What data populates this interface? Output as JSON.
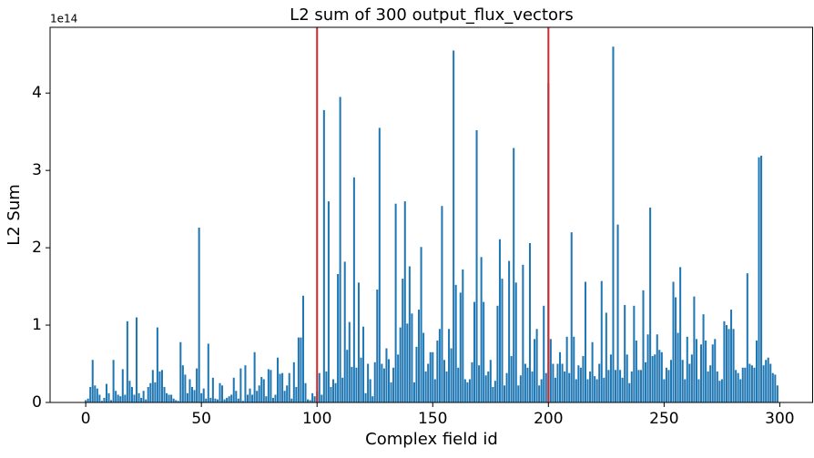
{
  "chart_data": {
    "type": "bar",
    "title": "L2 sum of 300 output_flux_vectors",
    "xlabel": "Complex field id",
    "ylabel": "L2 Sum",
    "offset_label": "1e14",
    "color": "#1f77b4",
    "bar_width": 0.8,
    "vlines": [
      100,
      200
    ],
    "vline_color": "#d62728",
    "xlim": [
      -15.4,
      314.4
    ],
    "xticks": [
      0,
      50,
      100,
      150,
      200,
      250,
      300
    ],
    "ylim": [
      0,
      4.85
    ],
    "yticks": [
      0,
      1,
      2,
      3,
      4
    ],
    "x": [
      0,
      1,
      2,
      3,
      4,
      5,
      6,
      7,
      8,
      9,
      10,
      11,
      12,
      13,
      14,
      15,
      16,
      17,
      18,
      19,
      20,
      21,
      22,
      23,
      24,
      25,
      26,
      27,
      28,
      29,
      30,
      31,
      32,
      33,
      34,
      35,
      36,
      37,
      38,
      39,
      40,
      41,
      42,
      43,
      44,
      45,
      46,
      47,
      48,
      49,
      50,
      51,
      52,
      53,
      54,
      55,
      56,
      57,
      58,
      59,
      60,
      61,
      62,
      63,
      64,
      65,
      66,
      67,
      68,
      69,
      70,
      71,
      72,
      73,
      74,
      75,
      76,
      77,
      78,
      79,
      80,
      81,
      82,
      83,
      84,
      85,
      86,
      87,
      88,
      89,
      90,
      91,
      92,
      93,
      94,
      95,
      96,
      97,
      98,
      99,
      100,
      101,
      102,
      103,
      104,
      105,
      106,
      107,
      108,
      109,
      110,
      111,
      112,
      113,
      114,
      115,
      116,
      117,
      118,
      119,
      120,
      121,
      122,
      123,
      124,
      125,
      126,
      127,
      128,
      129,
      130,
      131,
      132,
      133,
      134,
      135,
      136,
      137,
      138,
      139,
      140,
      141,
      142,
      143,
      144,
      145,
      146,
      147,
      148,
      149,
      150,
      151,
      152,
      153,
      154,
      155,
      156,
      157,
      158,
      159,
      160,
      161,
      162,
      163,
      164,
      165,
      166,
      167,
      168,
      169,
      170,
      171,
      172,
      173,
      174,
      175,
      176,
      177,
      178,
      179,
      180,
      181,
      182,
      183,
      184,
      185,
      186,
      187,
      188,
      189,
      190,
      191,
      192,
      193,
      194,
      195,
      196,
      197,
      198,
      199,
      200,
      201,
      202,
      203,
      204,
      205,
      206,
      207,
      208,
      209,
      210,
      211,
      212,
      213,
      214,
      215,
      216,
      217,
      218,
      219,
      220,
      221,
      222,
      223,
      224,
      225,
      226,
      227,
      228,
      229,
      230,
      231,
      232,
      233,
      234,
      235,
      236,
      237,
      238,
      239,
      240,
      241,
      242,
      243,
      244,
      245,
      246,
      247,
      248,
      249,
      250,
      251,
      252,
      253,
      254,
      255,
      256,
      257,
      258,
      259,
      260,
      261,
      262,
      263,
      264,
      265,
      266,
      267,
      268,
      269,
      270,
      271,
      272,
      273,
      274,
      275,
      276,
      277,
      278,
      279,
      280,
      281,
      282,
      283,
      284,
      285,
      286,
      287,
      288,
      289,
      290,
      291,
      292,
      293,
      294,
      295,
      296,
      297,
      298,
      299
    ],
    "values": [
      0.03,
      0.05,
      0.2,
      0.55,
      0.22,
      0.18,
      0.1,
      0.02,
      0.06,
      0.24,
      0.12,
      0.03,
      0.55,
      0.15,
      0.1,
      0.08,
      0.43,
      0.1,
      1.05,
      0.28,
      0.2,
      0.1,
      1.1,
      0.12,
      0.06,
      0.15,
      0.04,
      0.2,
      0.25,
      0.42,
      0.26,
      0.97,
      0.4,
      0.42,
      0.2,
      0.12,
      0.1,
      0.1,
      0.05,
      0.03,
      0.02,
      0.78,
      0.48,
      0.36,
      0.12,
      0.3,
      0.2,
      0.16,
      0.44,
      2.26,
      0.12,
      0.18,
      0.05,
      0.76,
      0.06,
      0.32,
      0.05,
      0.04,
      0.25,
      0.22,
      0.04,
      0.06,
      0.08,
      0.1,
      0.32,
      0.15,
      0.05,
      0.44,
      0.02,
      0.48,
      0.1,
      0.18,
      0.1,
      0.65,
      0.15,
      0.22,
      0.33,
      0.3,
      0.08,
      0.43,
      0.42,
      0.06,
      0.1,
      0.58,
      0.37,
      0.38,
      0.15,
      0.22,
      0.38,
      0.05,
      0.52,
      0.2,
      0.84,
      0.84,
      1.38,
      0.25,
      0.04,
      0.03,
      0.12,
      0.08,
      0.14,
      0.38,
      0.1,
      3.78,
      0.4,
      2.6,
      0.2,
      0.3,
      0.25,
      1.66,
      3.95,
      0.32,
      1.82,
      0.68,
      1.04,
      0.46,
      2.91,
      0.45,
      1.55,
      0.58,
      0.98,
      0.12,
      0.5,
      0.3,
      0.08,
      0.52,
      1.46,
      3.55,
      0.5,
      0.44,
      0.7,
      0.56,
      0.26,
      0.45,
      2.57,
      0.62,
      0.97,
      1.6,
      2.6,
      1.02,
      1.76,
      1.15,
      0.26,
      0.72,
      1.2,
      2.01,
      0.9,
      0.4,
      0.5,
      0.65,
      0.65,
      0.3,
      0.8,
      0.95,
      2.54,
      0.55,
      0.4,
      0.95,
      0.7,
      4.55,
      1.52,
      0.45,
      1.42,
      1.72,
      0.3,
      0.26,
      0.3,
      0.52,
      1.3,
      3.52,
      0.48,
      1.88,
      1.3,
      0.35,
      0.4,
      0.55,
      0.2,
      0.28,
      1.25,
      2.11,
      1.6,
      0.22,
      0.38,
      1.83,
      0.6,
      3.29,
      1.55,
      0.22,
      0.35,
      1.78,
      0.5,
      0.45,
      2.06,
      0.4,
      0.82,
      0.95,
      0.22,
      0.3,
      1.25,
      0.38,
      4.13,
      0.82,
      0.5,
      0.32,
      0.5,
      0.65,
      0.5,
      0.4,
      0.85,
      0.38,
      2.2,
      0.85,
      0.3,
      0.48,
      0.45,
      0.6,
      1.56,
      0.3,
      0.4,
      0.78,
      0.34,
      0.3,
      0.5,
      1.57,
      0.32,
      1.16,
      0.42,
      0.62,
      4.6,
      0.42,
      2.3,
      0.42,
      0.32,
      1.26,
      0.62,
      0.25,
      0.4,
      1.25,
      0.8,
      0.42,
      0.42,
      1.45,
      0.52,
      0.88,
      2.52,
      0.6,
      0.62,
      0.88,
      0.68,
      0.65,
      0.3,
      0.45,
      0.42,
      0.55,
      1.56,
      1.36,
      0.9,
      1.75,
      0.55,
      0.3,
      0.85,
      0.5,
      0.62,
      1.37,
      0.82,
      0.3,
      0.75,
      1.14,
      0.8,
      0.4,
      0.48,
      0.75,
      0.82,
      0.4,
      0.28,
      0.3,
      1.05,
      1.0,
      0.95,
      1.2,
      0.95,
      0.42,
      0.38,
      0.3,
      0.45,
      0.45,
      1.67,
      0.5,
      0.48,
      0.45,
      0.8,
      3.17,
      3.19,
      0.48,
      0.55,
      0.58,
      0.5,
      0.38,
      0.36,
      0.22
    ]
  }
}
